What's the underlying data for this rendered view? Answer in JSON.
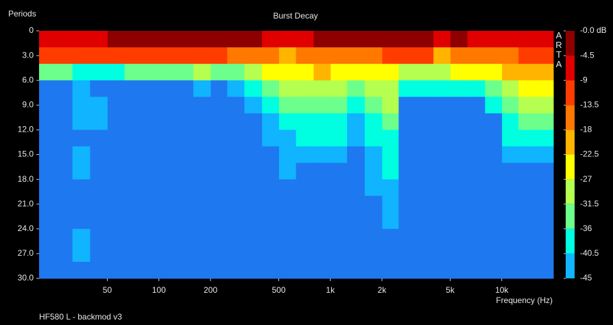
{
  "chart_data": {
    "type": "heatmap",
    "title": "Burst Decay",
    "y_label": "Periods",
    "x_label": "Frequency (Hz)",
    "footer": "HF580 L - backmod v3",
    "watermark": "ARTA",
    "log_x": true,
    "xlim": [
      20,
      20000
    ],
    "xticks": [
      50,
      100,
      200,
      500,
      {
        "value": 1000,
        "label": "1k"
      },
      {
        "value": 2000,
        "label": "2k"
      },
      {
        "value": 5000,
        "label": "5k"
      },
      {
        "value": 10000,
        "label": "10k"
      }
    ],
    "ylim": [
      0,
      30
    ],
    "yticks": [
      0,
      {
        "value": 3,
        "label": "3.0"
      },
      {
        "value": 6,
        "label": "6.0"
      },
      {
        "value": 9,
        "label": "9.0"
      },
      {
        "value": 12,
        "label": "12.0"
      },
      {
        "value": 15,
        "label": "15.0"
      },
      {
        "value": 18,
        "label": "18.0"
      },
      {
        "value": 21,
        "label": "21.0"
      },
      {
        "value": 24,
        "label": "24.0"
      },
      {
        "value": 27,
        "label": "27.0"
      },
      {
        "value": 30,
        "label": "30.0"
      }
    ],
    "colorbar_ticks": [
      {
        "value": 0,
        "label": "-0.0 dB"
      },
      -4.5,
      -9.0,
      -13.5,
      -18.0,
      -22.5,
      -27.0,
      -31.5,
      -36.0,
      -40.5,
      -45.0
    ],
    "colors": [
      "#8e0000",
      "#e00000",
      "#ff3c00",
      "#ff7800",
      "#ffb400",
      "#ffff00",
      "#b4ff50",
      "#6cff8c",
      "#00ffe0",
      "#10b4ff",
      "#1e78f0"
    ],
    "x": [
      22,
      28,
      35,
      45,
      56,
      71,
      90,
      112,
      140,
      180,
      224,
      280,
      355,
      450,
      560,
      710,
      900,
      1120,
      1400,
      1800,
      2240,
      2800,
      3550,
      4500,
      5600,
      7100,
      9000,
      11200,
      14000,
      18000
    ],
    "y": [
      1,
      3,
      5,
      7,
      9,
      11,
      13,
      15,
      17,
      19,
      21,
      23,
      25,
      27,
      29
    ],
    "z": [
      [
        -6,
        -11,
        -34,
        -48,
        -48,
        -48,
        -48,
        -48,
        -48,
        -48,
        -48,
        -48,
        -48,
        -48,
        -48
      ],
      [
        -6,
        -11,
        -34,
        -48,
        -48,
        -48,
        -48,
        -48,
        -48,
        -48,
        -48,
        -48,
        -48,
        -48,
        -48
      ],
      [
        -6,
        -13,
        -36,
        -42,
        -42,
        -42,
        -48,
        -42,
        -42,
        -48,
        -48,
        -48,
        -42,
        -42,
        -48
      ],
      [
        -6,
        -13,
        -36,
        -48,
        -42,
        -42,
        -48,
        -48,
        -48,
        -48,
        -48,
        -48,
        -48,
        -48,
        -48
      ],
      [
        -4,
        -11,
        -36,
        -48,
        -48,
        -48,
        -48,
        -48,
        -48,
        -48,
        -48,
        -48,
        -48,
        -48,
        -48
      ],
      [
        -4,
        -11,
        -34,
        -48,
        -48,
        -48,
        -48,
        -48,
        -48,
        -48,
        -48,
        -48,
        -48,
        -48,
        -48
      ],
      [
        -2,
        -9,
        -34,
        -48,
        -48,
        -48,
        -48,
        -48,
        -48,
        -48,
        -48,
        -48,
        -48,
        -48,
        -48
      ],
      [
        -2,
        -9,
        -34,
        -48,
        -48,
        -48,
        -48,
        -48,
        -48,
        -48,
        -48,
        -48,
        -48,
        -48,
        -48
      ],
      [
        -2,
        -9,
        -34,
        -48,
        -48,
        -48,
        -48,
        -48,
        -48,
        -48,
        -48,
        -48,
        -48,
        -48,
        -48
      ],
      [
        -2,
        -9,
        -30,
        -42,
        -48,
        -48,
        -48,
        -48,
        -48,
        -48,
        -48,
        -48,
        -48,
        -48,
        -48
      ],
      [
        -2,
        -11,
        -34,
        -48,
        -48,
        -48,
        -48,
        -48,
        -48,
        -48,
        -48,
        -48,
        -48,
        -48,
        -48
      ],
      [
        -4,
        -15,
        -34,
        -42,
        -48,
        -48,
        -48,
        -48,
        -48,
        -48,
        -48,
        -48,
        -48,
        -48,
        -48
      ],
      [
        -4,
        -15,
        -30,
        -38,
        -42,
        -48,
        -48,
        -48,
        -48,
        -48,
        -48,
        -48,
        -48,
        -48,
        -48
      ],
      [
        -6,
        -15,
        -25,
        -34,
        -38,
        -42,
        -42,
        -48,
        -48,
        -48,
        -48,
        -48,
        -48,
        -48,
        -48
      ],
      [
        -6,
        -20,
        -25,
        -29,
        -34,
        -38,
        -42,
        -42,
        -42,
        -48,
        -48,
        -48,
        -48,
        -48,
        -48
      ],
      [
        -6,
        -15,
        -25,
        -29,
        -34,
        -38,
        -40,
        -42,
        -48,
        -48,
        -48,
        -48,
        -48,
        -48,
        -48
      ],
      [
        -4,
        -15,
        -22,
        -29,
        -34,
        -38,
        -40,
        -42,
        -48,
        -48,
        -48,
        -48,
        -48,
        -48,
        -48
      ],
      [
        -4,
        -15,
        -25,
        -29,
        -34,
        -38,
        -38,
        -42,
        -48,
        -48,
        -48,
        -48,
        -48,
        -48,
        -48
      ],
      [
        -4,
        -15,
        -25,
        -34,
        -38,
        -42,
        -42,
        -48,
        -48,
        -48,
        -48,
        -48,
        -48,
        -48,
        -48
      ],
      [
        -4,
        -15,
        -25,
        -29,
        -34,
        -36,
        -38,
        -42,
        -42,
        -42,
        -48,
        -48,
        -48,
        -48,
        -48
      ],
      [
        -4,
        -11,
        -25,
        -29,
        -29,
        -34,
        -36,
        -38,
        -38,
        -42,
        -42,
        -42,
        -48,
        -48,
        -48
      ],
      [
        -4,
        -13,
        -29,
        -38,
        -48,
        -48,
        -48,
        -48,
        -48,
        -48,
        -48,
        -48,
        -48,
        -48,
        -48
      ],
      [
        -4,
        -13,
        -29,
        -38,
        -48,
        -48,
        -48,
        -48,
        -48,
        -48,
        -48,
        -48,
        -48,
        -48,
        -48
      ],
      [
        -6,
        -20,
        -29,
        -38,
        -48,
        -48,
        -48,
        -48,
        -48,
        -48,
        -48,
        -48,
        -48,
        -48,
        -48
      ],
      [
        -4,
        -15,
        -25,
        -36,
        -48,
        -48,
        -48,
        -48,
        -48,
        -48,
        -48,
        -48,
        -48,
        -48,
        -48
      ],
      [
        -6,
        -15,
        -25,
        -36,
        -48,
        -48,
        -48,
        -48,
        -48,
        -48,
        -48,
        -48,
        -48,
        -48,
        -48
      ],
      [
        -6,
        -15,
        -25,
        -34,
        -38,
        -48,
        -48,
        -48,
        -48,
        -48,
        -48,
        -48,
        -48,
        -48,
        -48
      ],
      [
        -6,
        -15,
        -22,
        -29,
        -34,
        -38,
        -40,
        -42,
        -48,
        -48,
        -48,
        -48,
        -48,
        -48,
        -48
      ],
      [
        -6,
        -13,
        -20,
        -25,
        -29,
        -34,
        -38,
        -42,
        -48,
        -48,
        -48,
        -48,
        -48,
        -48,
        -48
      ],
      [
        -6,
        -13,
        -22,
        -25,
        -29,
        -34,
        -38,
        -42,
        -48,
        -48,
        -48,
        -48,
        -48,
        -48,
        -48
      ]
    ]
  }
}
